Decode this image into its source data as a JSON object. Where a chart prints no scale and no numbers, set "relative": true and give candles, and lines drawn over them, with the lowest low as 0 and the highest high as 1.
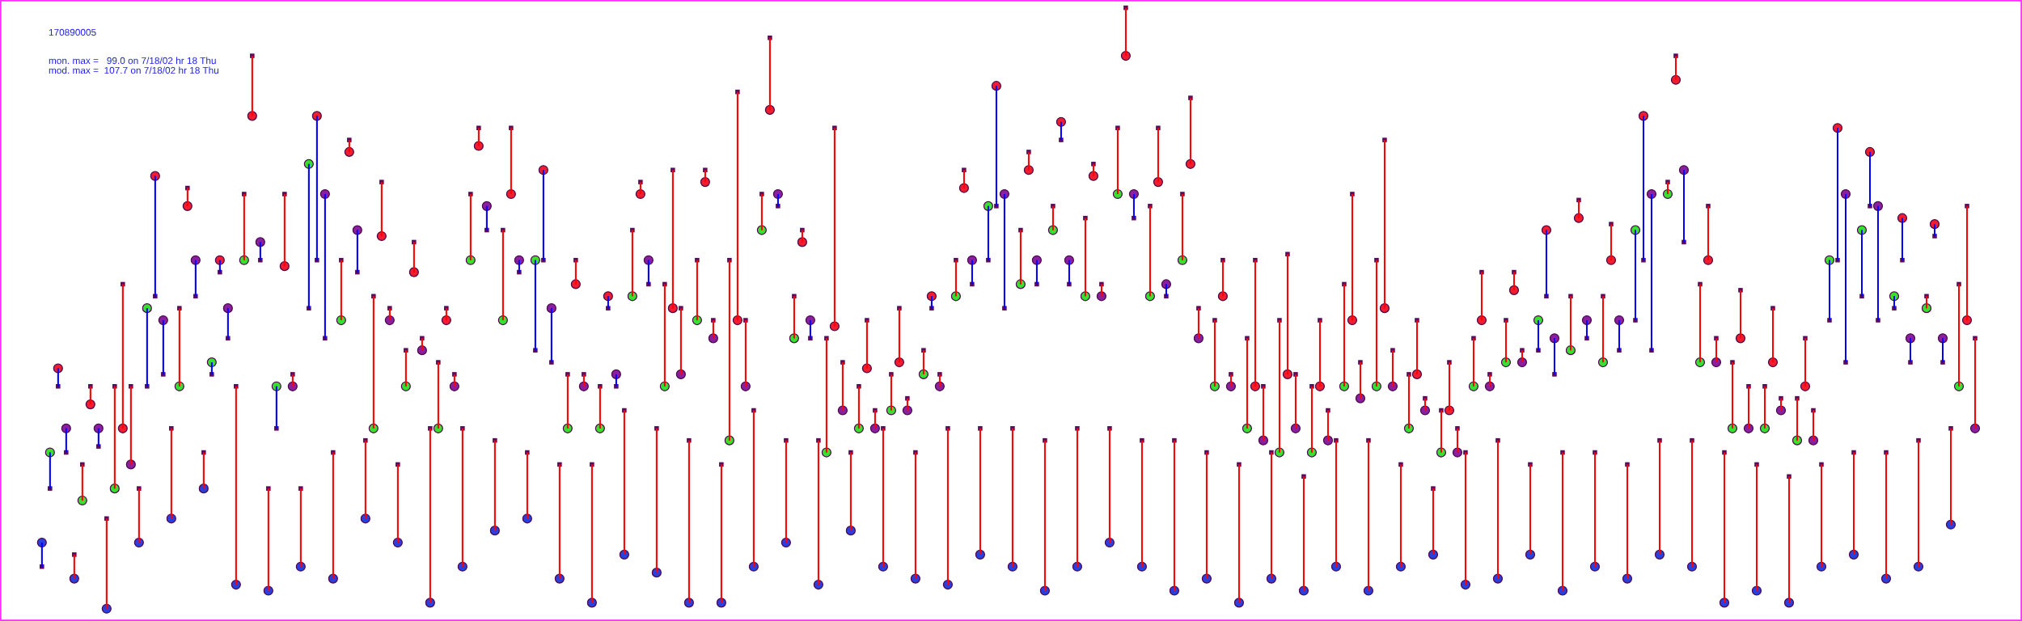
{
  "chart_data": {
    "type": "candlestick",
    "title": "170890005",
    "annotations": [
      "mon. max =   99.0 on 7/18/02 hr 18 Thu",
      "mod. max =  107.7 on 7/18/02 hr 18 Thu"
    ],
    "relative": true,
    "tick_labels": false,
    "categories": [
      null,
      null,
      null,
      null,
      null,
      null,
      null,
      null,
      null,
      null,
      null,
      null,
      null,
      null,
      null,
      null,
      null,
      null,
      null,
      null,
      null,
      null,
      null,
      null,
      null,
      null,
      null,
      null,
      null,
      null,
      null,
      null,
      null,
      null,
      null,
      null,
      null,
      null,
      null,
      null,
      null,
      null,
      null,
      null,
      null,
      null,
      null,
      null,
      null,
      null,
      null,
      null,
      null,
      null,
      null,
      null,
      null,
      null,
      null,
      null,
      null,
      null,
      null,
      null,
      null,
      null,
      null,
      null,
      null,
      null,
      null,
      null,
      null,
      null,
      null,
      null,
      null,
      null,
      null,
      null,
      null,
      null,
      null,
      null,
      null,
      null,
      null,
      null,
      null,
      null,
      null,
      null,
      null,
      null,
      null,
      null,
      null,
      null,
      null,
      null,
      null,
      null,
      null,
      null,
      null,
      null,
      null,
      null,
      null,
      null,
      null,
      null,
      null,
      null,
      null,
      null,
      null,
      null,
      null,
      null,
      null,
      null,
      null,
      null,
      null,
      null,
      null,
      null,
      null,
      null,
      null,
      null,
      null,
      null,
      null,
      null,
      null,
      null,
      null,
      null,
      null,
      null,
      null,
      null,
      null,
      null,
      null,
      null,
      null,
      null,
      null,
      null,
      null,
      null,
      null,
      null,
      null,
      null,
      null,
      null,
      null,
      null,
      null,
      null,
      null,
      null,
      null,
      null,
      null,
      null,
      null,
      null,
      null,
      null,
      null,
      null,
      null,
      null,
      null,
      null,
      null,
      null,
      null,
      null,
      null,
      null,
      null,
      null,
      null,
      null,
      null,
      null,
      null,
      null,
      null,
      null,
      null,
      null,
      null,
      null,
      null,
      null,
      null,
      null,
      null,
      null,
      null,
      null,
      null,
      null,
      null,
      null,
      null,
      null,
      null,
      null,
      null,
      null,
      null,
      null,
      null,
      null,
      null,
      null,
      null,
      null,
      null,
      null,
      null,
      null,
      null,
      null,
      null,
      null,
      null,
      null,
      null,
      null,
      null,
      null
    ],
    "ohlc": [
      [
        0.11,
        0.11,
        0.07,
        0.07
      ],
      [
        0.26,
        0.26,
        0.2,
        0.2
      ],
      [
        0.4,
        0.4,
        0.37,
        0.37
      ],
      [
        0.3,
        0.3,
        0.26,
        0.26
      ],
      [
        0.05,
        0.09,
        0.05,
        0.09
      ],
      [
        0.18,
        0.24,
        0.18,
        0.24
      ],
      [
        0.34,
        0.37,
        0.34,
        0.37
      ],
      [
        0.3,
        0.3,
        0.27,
        0.27
      ],
      [
        0.0,
        0.15,
        0.0,
        0.15
      ],
      [
        0.2,
        0.37,
        0.2,
        0.37
      ],
      [
        0.3,
        0.54,
        0.3,
        0.54
      ],
      [
        0.24,
        0.37,
        0.24,
        0.37
      ],
      [
        0.11,
        0.2,
        0.11,
        0.2
      ],
      [
        0.5,
        0.5,
        0.37,
        0.37
      ],
      [
        0.72,
        0.72,
        0.52,
        0.52
      ],
      [
        0.48,
        0.48,
        0.39,
        0.39
      ],
      [
        0.15,
        0.3,
        0.15,
        0.3
      ],
      [
        0.37,
        0.5,
        0.37,
        0.5
      ],
      [
        0.67,
        0.7,
        0.67,
        0.7
      ],
      [
        0.58,
        0.58,
        0.52,
        0.52
      ],
      [
        0.2,
        0.26,
        0.2,
        0.26
      ],
      [
        0.41,
        0.41,
        0.39,
        0.39
      ],
      [
        0.58,
        0.58,
        0.56,
        0.56
      ],
      [
        0.5,
        0.5,
        0.45,
        0.45
      ],
      [
        0.04,
        0.37,
        0.04,
        0.37
      ],
      [
        0.58,
        0.69,
        0.58,
        0.69
      ],
      [
        0.82,
        0.92,
        0.82,
        0.92
      ],
      [
        0.61,
        0.61,
        0.58,
        0.58
      ],
      [
        0.03,
        0.2,
        0.03,
        0.2
      ],
      [
        0.37,
        0.37,
        0.3,
        0.3
      ],
      [
        0.57,
        0.69,
        0.57,
        0.69
      ],
      [
        0.37,
        0.39,
        0.37,
        0.39
      ],
      [
        0.07,
        0.2,
        0.07,
        0.2
      ],
      [
        0.74,
        0.74,
        0.5,
        0.5
      ],
      [
        0.82,
        0.82,
        0.58,
        0.58
      ],
      [
        0.69,
        0.69,
        0.45,
        0.45
      ],
      [
        0.05,
        0.26,
        0.05,
        0.26
      ],
      [
        0.48,
        0.58,
        0.48,
        0.58
      ],
      [
        0.76,
        0.78,
        0.76,
        0.78
      ],
      [
        0.63,
        0.63,
        0.56,
        0.56
      ],
      [
        0.15,
        0.28,
        0.15,
        0.28
      ],
      [
        0.3,
        0.52,
        0.3,
        0.52
      ],
      [
        0.62,
        0.71,
        0.62,
        0.71
      ],
      [
        0.48,
        0.5,
        0.48,
        0.5
      ],
      [
        0.11,
        0.24,
        0.11,
        0.24
      ],
      [
        0.37,
        0.43,
        0.37,
        0.43
      ],
      [
        0.56,
        0.61,
        0.56,
        0.61
      ],
      [
        0.43,
        0.45,
        0.43,
        0.45
      ],
      [
        0.01,
        0.3,
        0.01,
        0.3
      ],
      [
        0.3,
        0.41,
        0.3,
        0.41
      ],
      [
        0.48,
        0.5,
        0.48,
        0.5
      ],
      [
        0.37,
        0.39,
        0.37,
        0.39
      ],
      [
        0.07,
        0.3,
        0.07,
        0.3
      ],
      [
        0.58,
        0.69,
        0.58,
        0.69
      ],
      [
        0.77,
        0.8,
        0.77,
        0.8
      ],
      [
        0.67,
        0.67,
        0.63,
        0.63
      ],
      [
        0.13,
        0.28,
        0.13,
        0.28
      ],
      [
        0.48,
        0.63,
        0.48,
        0.63
      ],
      [
        0.69,
        0.8,
        0.69,
        0.8
      ],
      [
        0.58,
        0.58,
        0.56,
        0.56
      ],
      [
        0.15,
        0.26,
        0.15,
        0.26
      ],
      [
        0.58,
        0.58,
        0.43,
        0.43
      ],
      [
        0.73,
        0.73,
        0.58,
        0.58
      ],
      [
        0.5,
        0.5,
        0.41,
        0.41
      ],
      [
        0.05,
        0.24,
        0.05,
        0.24
      ],
      [
        0.3,
        0.39,
        0.3,
        0.39
      ],
      [
        0.54,
        0.58,
        0.54,
        0.58
      ],
      [
        0.37,
        0.39,
        0.37,
        0.39
      ],
      [
        0.01,
        0.24,
        0.01,
        0.24
      ],
      [
        0.3,
        0.37,
        0.3,
        0.37
      ],
      [
        0.52,
        0.52,
        0.5,
        0.5
      ],
      [
        0.39,
        0.39,
        0.37,
        0.37
      ],
      [
        0.09,
        0.33,
        0.09,
        0.33
      ],
      [
        0.52,
        0.63,
        0.52,
        0.63
      ],
      [
        0.69,
        0.71,
        0.69,
        0.71
      ],
      [
        0.58,
        0.58,
        0.54,
        0.54
      ],
      [
        0.06,
        0.3,
        0.06,
        0.3
      ],
      [
        0.37,
        0.54,
        0.37,
        0.54
      ],
      [
        0.5,
        0.73,
        0.5,
        0.73
      ],
      [
        0.39,
        0.5,
        0.39,
        0.5
      ],
      [
        0.01,
        0.28,
        0.01,
        0.28
      ],
      [
        0.48,
        0.58,
        0.48,
        0.58
      ],
      [
        0.71,
        0.73,
        0.71,
        0.73
      ],
      [
        0.45,
        0.48,
        0.45,
        0.48
      ],
      [
        0.01,
        0.24,
        0.01,
        0.24
      ],
      [
        0.28,
        0.58,
        0.28,
        0.58
      ],
      [
        0.48,
        0.86,
        0.48,
        0.86
      ],
      [
        0.37,
        0.48,
        0.37,
        0.48
      ],
      [
        0.07,
        0.33,
        0.07,
        0.33
      ],
      [
        0.63,
        0.69,
        0.63,
        0.69
      ],
      [
        0.83,
        0.95,
        0.83,
        0.95
      ],
      [
        0.69,
        0.69,
        0.67,
        0.67
      ],
      [
        0.11,
        0.28,
        0.11,
        0.28
      ],
      [
        0.45,
        0.52,
        0.45,
        0.52
      ],
      [
        0.61,
        0.63,
        0.61,
        0.63
      ],
      [
        0.48,
        0.48,
        0.45,
        0.45
      ],
      [
        0.04,
        0.28,
        0.04,
        0.28
      ],
      [
        0.26,
        0.45,
        0.26,
        0.45
      ],
      [
        0.47,
        0.8,
        0.47,
        0.8
      ],
      [
        0.33,
        0.41,
        0.33,
        0.41
      ],
      [
        0.13,
        0.26,
        0.13,
        0.26
      ],
      [
        0.3,
        0.37,
        0.3,
        0.37
      ],
      [
        0.4,
        0.48,
        0.4,
        0.48
      ],
      [
        0.3,
        0.33,
        0.3,
        0.33
      ],
      [
        0.07,
        0.3,
        0.07,
        0.3
      ],
      [
        0.33,
        0.39,
        0.33,
        0.39
      ],
      [
        0.41,
        0.5,
        0.41,
        0.5
      ],
      [
        0.33,
        0.35,
        0.33,
        0.35
      ],
      [
        0.05,
        0.26,
        0.05,
        0.26
      ],
      [
        0.39,
        0.43,
        0.39,
        0.43
      ],
      [
        0.52,
        0.52,
        0.5,
        0.5
      ],
      [
        0.37,
        0.39,
        0.37,
        0.39
      ],
      [
        0.04,
        0.3,
        0.04,
        0.3
      ],
      [
        0.52,
        0.58,
        0.52,
        0.58
      ],
      [
        0.7,
        0.73,
        0.7,
        0.73
      ],
      [
        0.58,
        0.58,
        0.54,
        0.54
      ],
      [
        0.09,
        0.3,
        0.09,
        0.3
      ],
      [
        0.67,
        0.67,
        0.58,
        0.58
      ],
      [
        0.87,
        0.87,
        0.67,
        0.67
      ],
      [
        0.69,
        0.69,
        0.5,
        0.5
      ],
      [
        0.07,
        0.3,
        0.07,
        0.3
      ],
      [
        0.54,
        0.63,
        0.54,
        0.63
      ],
      [
        0.73,
        0.76,
        0.73,
        0.76
      ],
      [
        0.58,
        0.58,
        0.54,
        0.54
      ],
      [
        0.03,
        0.28,
        0.03,
        0.28
      ],
      [
        0.63,
        0.67,
        0.63,
        0.67
      ],
      [
        0.81,
        0.81,
        0.78,
        0.78
      ],
      [
        0.58,
        0.58,
        0.54,
        0.54
      ],
      [
        0.07,
        0.3,
        0.07,
        0.3
      ],
      [
        0.52,
        0.65,
        0.52,
        0.65
      ],
      [
        0.72,
        0.74,
        0.72,
        0.74
      ],
      [
        0.52,
        0.54,
        0.52,
        0.54
      ],
      [
        0.11,
        0.3,
        0.11,
        0.3
      ],
      [
        0.69,
        0.8,
        0.69,
        0.8
      ],
      [
        0.92,
        1.0,
        0.92,
        1.0
      ],
      [
        0.69,
        0.69,
        0.65,
        0.65
      ],
      [
        0.07,
        0.28,
        0.07,
        0.28
      ],
      [
        0.52,
        0.67,
        0.52,
        0.67
      ],
      [
        0.71,
        0.8,
        0.71,
        0.8
      ],
      [
        0.54,
        0.54,
        0.52,
        0.52
      ],
      [
        0.03,
        0.28,
        0.03,
        0.28
      ],
      [
        0.58,
        0.69,
        0.58,
        0.69
      ],
      [
        0.74,
        0.85,
        0.74,
        0.85
      ],
      [
        0.45,
        0.5,
        0.45,
        0.5
      ],
      [
        0.05,
        0.26,
        0.05,
        0.26
      ],
      [
        0.37,
        0.48,
        0.37,
        0.48
      ],
      [
        0.52,
        0.58,
        0.52,
        0.58
      ],
      [
        0.37,
        0.39,
        0.37,
        0.39
      ],
      [
        0.01,
        0.24,
        0.01,
        0.24
      ],
      [
        0.3,
        0.45,
        0.3,
        0.45
      ],
      [
        0.37,
        0.58,
        0.37,
        0.58
      ],
      [
        0.28,
        0.37,
        0.28,
        0.37
      ],
      [
        0.05,
        0.26,
        0.05,
        0.26
      ],
      [
        0.26,
        0.48,
        0.26,
        0.48
      ],
      [
        0.39,
        0.59,
        0.39,
        0.59
      ],
      [
        0.3,
        0.39,
        0.3,
        0.39
      ],
      [
        0.03,
        0.22,
        0.03,
        0.22
      ],
      [
        0.26,
        0.37,
        0.26,
        0.37
      ],
      [
        0.37,
        0.48,
        0.37,
        0.48
      ],
      [
        0.28,
        0.33,
        0.28,
        0.33
      ],
      [
        0.07,
        0.28,
        0.07,
        0.28
      ],
      [
        0.37,
        0.54,
        0.37,
        0.54
      ],
      [
        0.48,
        0.69,
        0.48,
        0.69
      ],
      [
        0.35,
        0.41,
        0.35,
        0.41
      ],
      [
        0.03,
        0.28,
        0.03,
        0.28
      ],
      [
        0.37,
        0.58,
        0.37,
        0.58
      ],
      [
        0.5,
        0.78,
        0.5,
        0.78
      ],
      [
        0.37,
        0.43,
        0.37,
        0.43
      ],
      [
        0.07,
        0.24,
        0.07,
        0.24
      ],
      [
        0.3,
        0.39,
        0.3,
        0.39
      ],
      [
        0.39,
        0.48,
        0.39,
        0.48
      ],
      [
        0.33,
        0.35,
        0.33,
        0.35
      ],
      [
        0.09,
        0.2,
        0.09,
        0.2
      ],
      [
        0.26,
        0.33,
        0.26,
        0.33
      ],
      [
        0.33,
        0.41,
        0.33,
        0.41
      ],
      [
        0.26,
        0.3,
        0.26,
        0.3
      ],
      [
        0.04,
        0.26,
        0.04,
        0.26
      ],
      [
        0.37,
        0.45,
        0.37,
        0.45
      ],
      [
        0.48,
        0.56,
        0.48,
        0.56
      ],
      [
        0.37,
        0.39,
        0.37,
        0.39
      ],
      [
        0.05,
        0.28,
        0.05,
        0.28
      ],
      [
        0.41,
        0.48,
        0.41,
        0.48
      ],
      [
        0.53,
        0.56,
        0.53,
        0.56
      ],
      [
        0.41,
        0.43,
        0.41,
        0.43
      ],
      [
        0.09,
        0.24,
        0.09,
        0.24
      ],
      [
        0.48,
        0.48,
        0.43,
        0.43
      ],
      [
        0.63,
        0.63,
        0.52,
        0.52
      ],
      [
        0.45,
        0.45,
        0.39,
        0.39
      ],
      [
        0.03,
        0.26,
        0.03,
        0.26
      ],
      [
        0.43,
        0.52,
        0.43,
        0.52
      ],
      [
        0.65,
        0.68,
        0.65,
        0.68
      ],
      [
        0.48,
        0.48,
        0.45,
        0.45
      ],
      [
        0.07,
        0.26,
        0.07,
        0.26
      ],
      [
        0.41,
        0.52,
        0.41,
        0.52
      ],
      [
        0.58,
        0.64,
        0.58,
        0.64
      ],
      [
        0.48,
        0.48,
        0.43,
        0.43
      ],
      [
        0.05,
        0.24,
        0.05,
        0.24
      ],
      [
        0.63,
        0.63,
        0.48,
        0.48
      ],
      [
        0.82,
        0.82,
        0.58,
        0.58
      ],
      [
        0.69,
        0.69,
        0.43,
        0.43
      ],
      [
        0.09,
        0.28,
        0.09,
        0.28
      ],
      [
        0.69,
        0.71,
        0.69,
        0.71
      ],
      [
        0.88,
        0.92,
        0.88,
        0.92
      ],
      [
        0.73,
        0.73,
        0.61,
        0.61
      ],
      [
        0.07,
        0.28,
        0.07,
        0.28
      ],
      [
        0.41,
        0.54,
        0.41,
        0.54
      ],
      [
        0.58,
        0.67,
        0.58,
        0.67
      ],
      [
        0.41,
        0.45,
        0.41,
        0.45
      ],
      [
        0.01,
        0.26,
        0.01,
        0.26
      ],
      [
        0.3,
        0.41,
        0.3,
        0.41
      ],
      [
        0.45,
        0.53,
        0.45,
        0.53
      ],
      [
        0.3,
        0.37,
        0.3,
        0.37
      ],
      [
        0.03,
        0.24,
        0.03,
        0.24
      ],
      [
        0.3,
        0.37,
        0.3,
        0.37
      ],
      [
        0.41,
        0.5,
        0.41,
        0.5
      ],
      [
        0.33,
        0.35,
        0.33,
        0.35
      ],
      [
        0.01,
        0.22,
        0.01,
        0.22
      ],
      [
        0.28,
        0.35,
        0.28,
        0.35
      ],
      [
        0.37,
        0.45,
        0.37,
        0.45
      ],
      [
        0.28,
        0.33,
        0.28,
        0.33
      ],
      [
        0.07,
        0.24,
        0.07,
        0.24
      ],
      [
        0.58,
        0.58,
        0.48,
        0.48
      ],
      [
        0.8,
        0.8,
        0.58,
        0.58
      ],
      [
        0.69,
        0.69,
        0.41,
        0.41
      ],
      [
        0.09,
        0.26,
        0.09,
        0.26
      ],
      [
        0.63,
        0.63,
        0.52,
        0.52
      ],
      [
        0.76,
        0.76,
        0.67,
        0.67
      ],
      [
        0.67,
        0.67,
        0.48,
        0.48
      ],
      [
        0.05,
        0.26,
        0.05,
        0.26
      ],
      [
        0.52,
        0.52,
        0.5,
        0.5
      ],
      [
        0.65,
        0.65,
        0.58,
        0.58
      ],
      [
        0.45,
        0.45,
        0.41,
        0.41
      ],
      [
        0.07,
        0.28,
        0.07,
        0.28
      ],
      [
        0.5,
        0.52,
        0.5,
        0.52
      ],
      [
        0.64,
        0.64,
        0.62,
        0.62
      ],
      [
        0.45,
        0.45,
        0.41,
        0.41
      ],
      [
        0.14,
        0.3,
        0.14,
        0.3
      ],
      [
        0.37,
        0.54,
        0.37,
        0.54
      ],
      [
        0.48,
        0.67,
        0.48,
        0.67
      ],
      [
        0.3,
        0.45,
        0.3,
        0.45
      ]
    ],
    "colors": [
      "#0000ff",
      "#0000ff",
      "#0000ff",
      "#0000ff",
      "#ff0000",
      "#ff0000",
      "#ff0000",
      "#0000ff",
      "#ff0000",
      "#ff0000",
      "#ff0000",
      "#ff0000",
      "#ff0000",
      "#0000ff",
      "#0000ff",
      "#0000ff",
      "#ff0000",
      "#ff0000",
      "#ff0000",
      "#0000ff",
      "#ff0000",
      "#0000ff",
      "#0000ff",
      "#0000ff",
      "#ff0000",
      "#ff0000",
      "#ff0000",
      "#0000ff",
      "#ff0000",
      "#0000ff",
      "#ff0000",
      "#ff0000",
      "#ff0000",
      "#0000ff",
      "#0000ff",
      "#0000ff",
      "#ff0000",
      "#ff0000",
      "#ff0000",
      "#0000ff",
      "#ff0000",
      "#ff0000",
      "#ff0000",
      "#ff0000",
      "#ff0000",
      "#ff0000",
      "#ff0000",
      "#ff0000",
      "#ff0000",
      "#ff0000",
      "#ff0000",
      "#ff0000",
      "#ff0000",
      "#ff0000",
      "#ff0000",
      "#0000ff",
      "#ff0000",
      "#ff0000",
      "#ff0000",
      "#0000ff",
      "#ff0000",
      "#0000ff",
      "#0000ff",
      "#0000ff",
      "#ff0000",
      "#ff0000",
      "#ff0000",
      "#ff0000",
      "#ff0000",
      "#ff0000",
      "#0000ff",
      "#0000ff",
      "#ff0000",
      "#ff0000",
      "#ff0000",
      "#0000ff",
      "#ff0000",
      "#ff0000",
      "#ff0000",
      "#ff0000",
      "#ff0000",
      "#ff0000",
      "#ff0000",
      "#ff0000",
      "#ff0000",
      "#ff0000",
      "#ff0000",
      "#ff0000",
      "#ff0000",
      "#ff0000",
      "#ff0000",
      "#0000ff",
      "#ff0000",
      "#ff0000",
      "#ff0000",
      "#0000ff",
      "#ff0000",
      "#ff0000",
      "#ff0000",
      "#ff0000",
      "#ff0000",
      "#ff0000",
      "#ff0000",
      "#ff0000",
      "#ff0000",
      "#ff0000",
      "#ff0000",
      "#ff0000",
      "#ff0000",
      "#ff0000",
      "#0000ff",
      "#ff0000",
      "#ff0000",
      "#ff0000",
      "#ff0000",
      "#0000ff",
      "#ff0000",
      "#0000ff",
      "#0000ff",
      "#0000ff",
      "#ff0000",
      "#ff0000",
      "#ff0000",
      "#0000ff",
      "#ff0000",
      "#ff0000",
      "#0000ff",
      "#0000ff",
      "#ff0000",
      "#ff0000",
      "#ff0000",
      "#ff0000",
      "#ff0000",
      "#ff0000",
      "#ff0000",
      "#0000ff",
      "#ff0000",
      "#ff0000",
      "#ff0000",
      "#0000ff",
      "#ff0000",
      "#ff0000",
      "#ff0000",
      "#ff0000",
      "#ff0000",
      "#ff0000",
      "#ff0000",
      "#ff0000",
      "#ff0000",
      "#ff0000",
      "#ff0000",
      "#ff0000",
      "#ff0000",
      "#ff0000",
      "#ff0000",
      "#ff0000",
      "#ff0000",
      "#ff0000",
      "#ff0000",
      "#ff0000",
      "#ff0000",
      "#ff0000",
      "#ff0000",
      "#ff0000",
      "#ff0000",
      "#ff0000",
      "#ff0000",
      "#ff0000",
      "#ff0000",
      "#ff0000",
      "#ff0000",
      "#ff0000",
      "#ff0000",
      "#ff0000",
      "#ff0000",
      "#ff0000",
      "#ff0000",
      "#ff0000",
      "#ff0000",
      "#ff0000",
      "#ff0000",
      "#ff0000",
      "#ff0000",
      "#ff0000",
      "#ff0000",
      "#0000ff",
      "#0000ff",
      "#0000ff",
      "#ff0000",
      "#ff0000",
      "#ff0000",
      "#0000ff",
      "#ff0000",
      "#ff0000",
      "#ff0000",
      "#0000ff",
      "#ff0000",
      "#0000ff",
      "#0000ff",
      "#0000ff",
      "#ff0000",
      "#ff0000",
      "#ff0000",
      "#0000ff",
      "#ff0000",
      "#ff0000",
      "#ff0000",
      "#ff0000",
      "#ff0000",
      "#ff0000",
      "#ff0000",
      "#ff0000",
      "#ff0000",
      "#ff0000",
      "#ff0000",
      "#ff0000",
      "#ff0000",
      "#ff0000",
      "#ff0000",
      "#ff0000",
      "#ff0000",
      "#0000ff",
      "#0000ff",
      "#0000ff",
      "#ff0000",
      "#0000ff",
      "#0000ff",
      "#0000ff",
      "#ff0000",
      "#0000ff",
      "#0000ff",
      "#0000ff",
      "#ff0000",
      "#ff0000",
      "#0000ff",
      "#0000ff",
      "#ff0000",
      "#ff0000",
      "#ff0000",
      "#ff0000"
    ],
    "series": [
      {
        "type": "scatter",
        "marker": "circle",
        "values": [
          0.11,
          0.26,
          0.4,
          0.3,
          0.05,
          0.18,
          0.34,
          0.3,
          0.0,
          0.2,
          0.3,
          0.24,
          0.11,
          0.5,
          0.72,
          0.48,
          0.15,
          0.37,
          0.67,
          0.58,
          0.2,
          0.41,
          0.58,
          0.5,
          0.04,
          0.58,
          0.82,
          0.61,
          0.03,
          0.37,
          0.57,
          0.37,
          0.07,
          0.74,
          0.82,
          0.69,
          0.05,
          0.48,
          0.76,
          0.63,
          0.15,
          0.3,
          0.62,
          0.48,
          0.11,
          0.37,
          0.56,
          0.43,
          0.01,
          0.3,
          0.48,
          0.37,
          0.07,
          0.58,
          0.77,
          0.67,
          0.13,
          0.48,
          0.69,
          0.58,
          0.15,
          0.58,
          0.73,
          0.5,
          0.05,
          0.3,
          0.54,
          0.37,
          0.01,
          0.3,
          0.52,
          0.39,
          0.09,
          0.52,
          0.69,
          0.58,
          0.06,
          0.37,
          0.5,
          0.39,
          0.01,
          0.48,
          0.71,
          0.45,
          0.01,
          0.28,
          0.48,
          0.37,
          0.07,
          0.63,
          0.83,
          0.69,
          0.11,
          0.45,
          0.61,
          0.48,
          0.04,
          0.26,
          0.47,
          0.33,
          0.13,
          0.3,
          0.4,
          0.3,
          0.07,
          0.33,
          0.41,
          0.33,
          0.05,
          0.39,
          0.52,
          0.37,
          0.04,
          0.52,
          0.7,
          0.58,
          0.09,
          0.67,
          0.87,
          0.69,
          0.07,
          0.54,
          0.73,
          0.58,
          0.03,
          0.63,
          0.81,
          0.58,
          0.07,
          0.52,
          0.72,
          0.52,
          0.11,
          0.69,
          0.92,
          0.69,
          0.07,
          0.52,
          0.71,
          0.54,
          0.03,
          0.58,
          0.74,
          0.45,
          0.05,
          0.37,
          0.52,
          0.37,
          0.01,
          0.3,
          0.37,
          0.28,
          0.05,
          0.26,
          0.39,
          0.3,
          0.03,
          0.26,
          0.37,
          0.28,
          0.07,
          0.37,
          0.48,
          0.35,
          0.03,
          0.37,
          0.5,
          0.37,
          0.07,
          0.3,
          0.39,
          0.33,
          0.09,
          0.26,
          0.33,
          0.26,
          0.04,
          0.37,
          0.48,
          0.37,
          0.05,
          0.41,
          0.53,
          0.41,
          0.09,
          0.48,
          0.63,
          0.45,
          0.03,
          0.43,
          0.65,
          0.48,
          0.07,
          0.41,
          0.58,
          0.48,
          0.05,
          0.63,
          0.82,
          0.69,
          0.09,
          0.69,
          0.88,
          0.73,
          0.07,
          0.41,
          0.58,
          0.41,
          0.01,
          0.3,
          0.45,
          0.3,
          0.03,
          0.3,
          0.41,
          0.33,
          0.01,
          0.28,
          0.37,
          0.28,
          0.07,
          0.58,
          0.8,
          0.69,
          0.09,
          0.63,
          0.76,
          0.67,
          0.05,
          0.52,
          0.65,
          0.45,
          0.07,
          0.5,
          0.64,
          0.45,
          0.14,
          0.37,
          0.48,
          0.3
        ],
        "colors": [
          "#2a3fe0",
          "#38e030",
          "#f01c30",
          "#8a1fa0",
          "#2a3fe0",
          "#38e030",
          "#f01c30",
          "#8a1fa0",
          "#2a3fe0",
          "#38e030",
          "#f01c30",
          "#8a1fa0",
          "#2a3fe0",
          "#38e030",
          "#f01c30",
          "#8a1fa0",
          "#2a3fe0",
          "#38e030",
          "#f01c30",
          "#8a1fa0",
          "#2a3fe0",
          "#38e030",
          "#f01c30",
          "#8a1fa0",
          "#2a3fe0",
          "#38e030",
          "#f01c30",
          "#8a1fa0",
          "#2a3fe0",
          "#38e030",
          "#f01c30",
          "#8a1fa0",
          "#2a3fe0",
          "#38e030",
          "#f01c30",
          "#8a1fa0",
          "#2a3fe0",
          "#38e030",
          "#f01c30",
          "#8a1fa0",
          "#2a3fe0",
          "#38e030",
          "#f01c30",
          "#8a1fa0",
          "#2a3fe0",
          "#38e030",
          "#f01c30",
          "#8a1fa0",
          "#2a3fe0",
          "#38e030",
          "#f01c30",
          "#8a1fa0",
          "#2a3fe0",
          "#38e030",
          "#f01c30",
          "#8a1fa0",
          "#2a3fe0",
          "#38e030",
          "#f01c30",
          "#8a1fa0",
          "#2a3fe0",
          "#38e030",
          "#f01c30",
          "#8a1fa0",
          "#2a3fe0",
          "#38e030",
          "#f01c30",
          "#8a1fa0",
          "#2a3fe0",
          "#38e030",
          "#f01c30",
          "#8a1fa0",
          "#2a3fe0",
          "#38e030",
          "#f01c30",
          "#8a1fa0",
          "#2a3fe0",
          "#38e030",
          "#f01c30",
          "#8a1fa0",
          "#2a3fe0",
          "#38e030",
          "#f01c30",
          "#8a1fa0",
          "#2a3fe0",
          "#38e030",
          "#f01c30",
          "#8a1fa0",
          "#2a3fe0",
          "#38e030",
          "#f01c30",
          "#8a1fa0",
          "#2a3fe0",
          "#38e030",
          "#f01c30",
          "#8a1fa0",
          "#2a3fe0",
          "#38e030",
          "#f01c30",
          "#8a1fa0",
          "#2a3fe0",
          "#38e030",
          "#f01c30",
          "#8a1fa0",
          "#2a3fe0",
          "#38e030",
          "#f01c30",
          "#8a1fa0",
          "#2a3fe0",
          "#38e030",
          "#f01c30",
          "#8a1fa0",
          "#2a3fe0",
          "#38e030",
          "#f01c30",
          "#8a1fa0",
          "#2a3fe0",
          "#38e030",
          "#f01c30",
          "#8a1fa0",
          "#2a3fe0",
          "#38e030",
          "#f01c30",
          "#8a1fa0",
          "#2a3fe0",
          "#38e030",
          "#f01c30",
          "#8a1fa0",
          "#2a3fe0",
          "#38e030",
          "#f01c30",
          "#8a1fa0",
          "#2a3fe0",
          "#38e030",
          "#f01c30",
          "#8a1fa0",
          "#2a3fe0",
          "#38e030",
          "#f01c30",
          "#8a1fa0",
          "#2a3fe0",
          "#38e030",
          "#f01c30",
          "#8a1fa0",
          "#2a3fe0",
          "#38e030",
          "#f01c30",
          "#8a1fa0",
          "#2a3fe0",
          "#38e030",
          "#f01c30",
          "#8a1fa0",
          "#2a3fe0",
          "#38e030",
          "#f01c30",
          "#8a1fa0",
          "#2a3fe0",
          "#38e030",
          "#f01c30",
          "#8a1fa0",
          "#2a3fe0",
          "#38e030",
          "#f01c30",
          "#8a1fa0",
          "#2a3fe0",
          "#38e030",
          "#f01c30",
          "#8a1fa0",
          "#2a3fe0",
          "#38e030",
          "#f01c30",
          "#8a1fa0",
          "#2a3fe0",
          "#38e030",
          "#f01c30",
          "#8a1fa0",
          "#2a3fe0",
          "#38e030",
          "#f01c30",
          "#8a1fa0",
          "#2a3fe0",
          "#38e030",
          "#f01c30",
          "#8a1fa0",
          "#2a3fe0",
          "#38e030",
          "#f01c30",
          "#8a1fa0",
          "#2a3fe0",
          "#38e030",
          "#f01c30",
          "#8a1fa0",
          "#2a3fe0",
          "#38e030",
          "#f01c30",
          "#8a1fa0",
          "#2a3fe0",
          "#38e030",
          "#f01c30",
          "#8a1fa0",
          "#2a3fe0",
          "#38e030",
          "#f01c30",
          "#8a1fa0",
          "#2a3fe0",
          "#38e030",
          "#f01c30",
          "#8a1fa0",
          "#2a3fe0",
          "#38e030",
          "#f01c30",
          "#8a1fa0",
          "#2a3fe0",
          "#38e030",
          "#f01c30",
          "#8a1fa0",
          "#2a3fe0",
          "#38e030",
          "#f01c30",
          "#8a1fa0",
          "#2a3fe0",
          "#38e030",
          "#f01c30",
          "#8a1fa0",
          "#2a3fe0",
          "#38e030",
          "#f01c30",
          "#8a1fa0",
          "#2a3fe0",
          "#38e030",
          "#f01c30",
          "#8a1fa0",
          "#2a3fe0",
          "#38e030",
          "#f01c30",
          "#8a1fa0",
          "#2a3fe0",
          "#38e030",
          "#f01c30",
          "#8a1fa0"
        ]
      },
      {
        "type": "scatter",
        "marker": "square",
        "color": "#5c0a5c",
        "values": [
          0.07,
          0.2,
          0.37,
          0.26,
          0.09,
          0.24,
          0.37,
          0.27,
          0.15,
          0.37,
          0.54,
          0.37,
          0.2,
          0.37,
          0.52,
          0.39,
          0.3,
          0.5,
          0.7,
          0.52,
          0.26,
          0.39,
          0.56,
          0.45,
          0.37,
          0.69,
          0.92,
          0.58,
          0.2,
          0.3,
          0.69,
          0.39,
          0.2,
          0.5,
          0.58,
          0.45,
          0.26,
          0.58,
          0.78,
          0.56,
          0.28,
          0.52,
          0.71,
          0.5,
          0.24,
          0.43,
          0.61,
          0.45,
          0.3,
          0.41,
          0.5,
          0.39,
          0.3,
          0.69,
          0.8,
          0.63,
          0.28,
          0.63,
          0.8,
          0.56,
          0.26,
          0.43,
          0.58,
          0.41,
          0.24,
          0.39,
          0.58,
          0.39,
          0.24,
          0.37,
          0.5,
          0.37,
          0.33,
          0.63,
          0.71,
          0.54,
          0.3,
          0.54,
          0.73,
          0.5,
          0.28,
          0.58,
          0.73,
          0.48,
          0.24,
          0.58,
          0.86,
          0.48,
          0.33,
          0.69,
          0.95,
          0.67,
          0.28,
          0.52,
          0.63,
          0.45,
          0.28,
          0.45,
          0.8,
          0.41,
          0.26,
          0.37,
          0.48,
          0.33,
          0.3,
          0.39,
          0.5,
          0.35,
          0.26,
          0.43,
          0.5,
          0.39,
          0.3,
          0.58,
          0.73,
          0.54,
          0.3,
          0.58,
          0.67,
          0.5,
          0.3,
          0.63,
          0.76,
          0.54,
          0.28,
          0.67,
          0.78,
          0.54,
          0.3,
          0.65,
          0.74,
          0.54,
          0.3,
          0.8,
          1.0,
          0.65,
          0.28,
          0.67,
          0.8,
          0.52,
          0.28,
          0.69,
          0.85,
          0.5,
          0.26,
          0.48,
          0.58,
          0.39,
          0.24,
          0.45,
          0.58,
          0.37,
          0.26,
          0.48,
          0.59,
          0.39,
          0.22,
          0.37,
          0.48,
          0.33,
          0.28,
          0.54,
          0.69,
          0.41,
          0.28,
          0.58,
          0.78,
          0.43,
          0.24,
          0.39,
          0.48,
          0.35,
          0.2,
          0.33,
          0.41,
          0.3,
          0.26,
          0.45,
          0.56,
          0.39,
          0.28,
          0.48,
          0.56,
          0.43,
          0.24,
          0.43,
          0.52,
          0.39,
          0.26,
          0.52,
          0.68,
          0.45,
          0.26,
          0.52,
          0.64,
          0.43,
          0.24,
          0.48,
          0.58,
          0.43,
          0.28,
          0.71,
          0.92,
          0.61,
          0.28,
          0.54,
          0.67,
          0.45,
          0.26,
          0.41,
          0.53,
          0.37,
          0.24,
          0.37,
          0.5,
          0.35,
          0.22,
          0.35,
          0.45,
          0.33,
          0.24,
          0.48,
          0.58,
          0.41,
          0.26,
          0.52,
          0.67,
          0.48,
          0.26,
          0.5,
          0.58,
          0.41,
          0.28,
          0.52,
          0.62,
          0.41,
          0.3,
          0.54,
          0.67,
          0.45
        ]
      }
    ]
  }
}
